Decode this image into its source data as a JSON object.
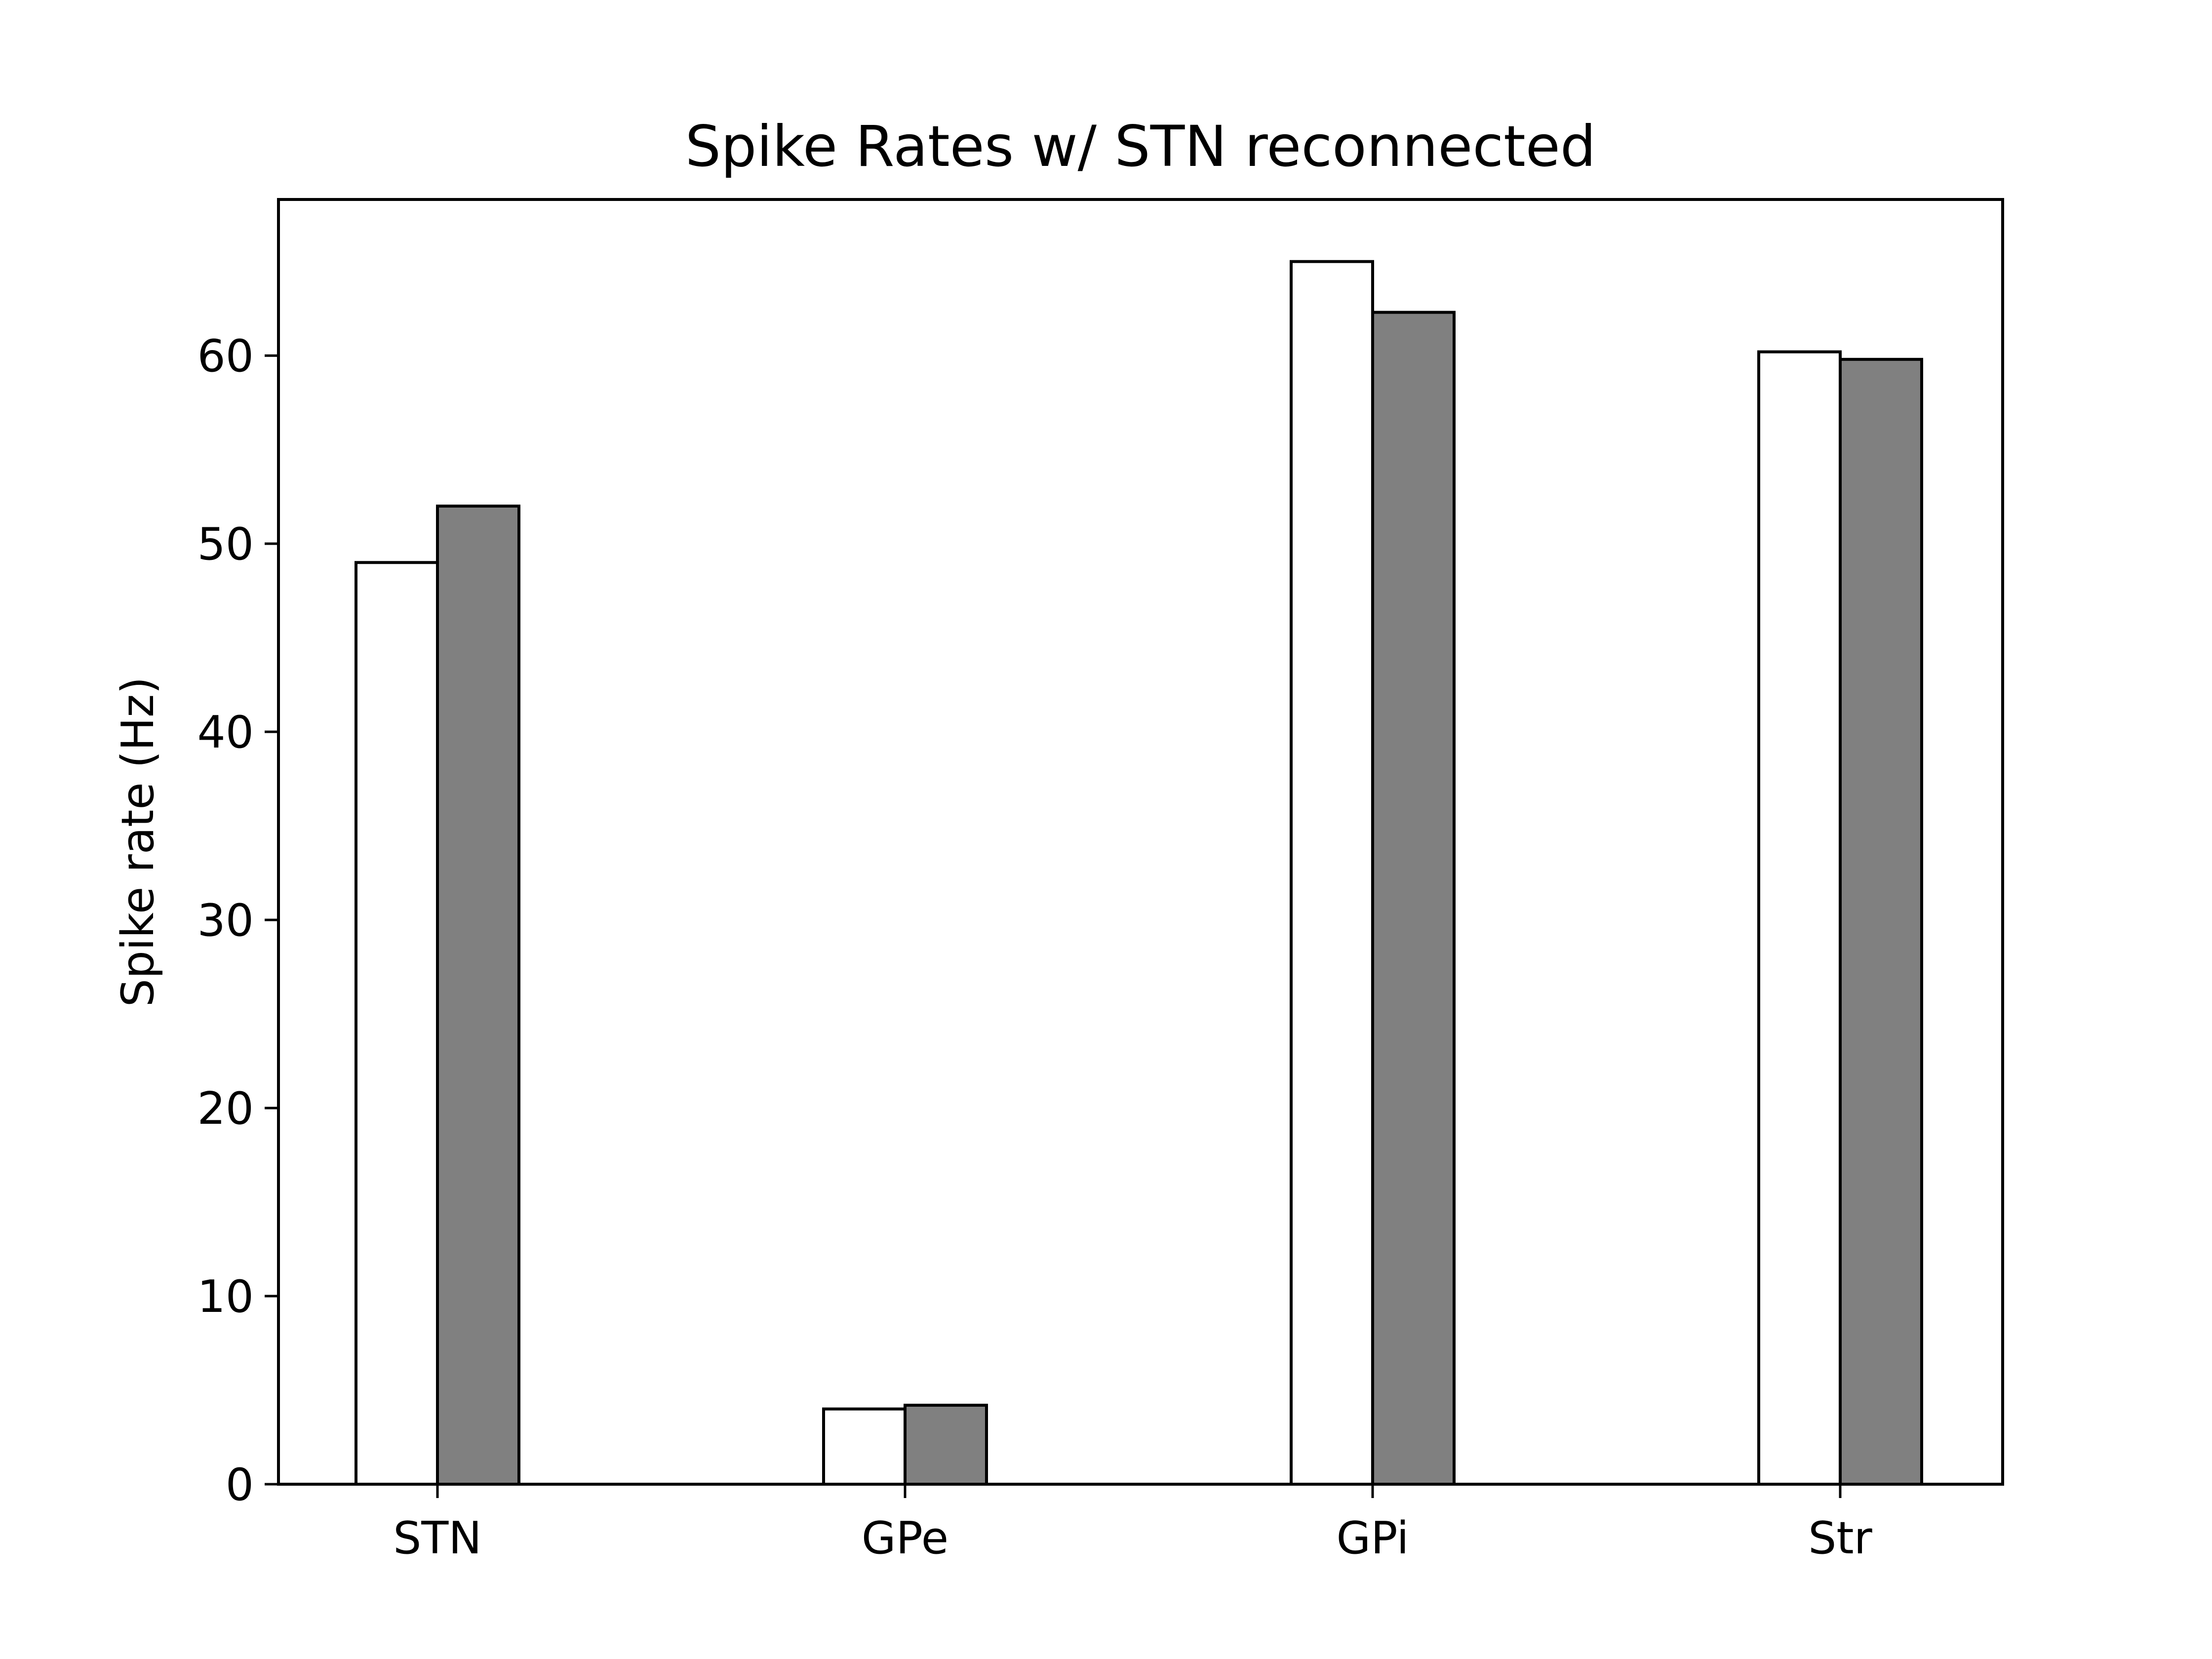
{
  "chart_data": {
    "type": "bar",
    "title": "Spike Rates w/ STN reconnected",
    "xlabel": "",
    "ylabel": "Spike rate (Hz)",
    "categories": [
      "STN",
      "GPe",
      "GPi",
      "Str"
    ],
    "series": [
      {
        "values": [
          49.0,
          4.0,
          65.0,
          60.2
        ],
        "color": "#ffffff"
      },
      {
        "values": [
          52.0,
          4.2,
          62.3,
          59.8
        ],
        "color": "#808080"
      }
    ],
    "ylim": [
      0,
      68.3
    ],
    "yticks": [
      0,
      10,
      20,
      30,
      40,
      50,
      60
    ],
    "grid": false,
    "legend": "none"
  }
}
